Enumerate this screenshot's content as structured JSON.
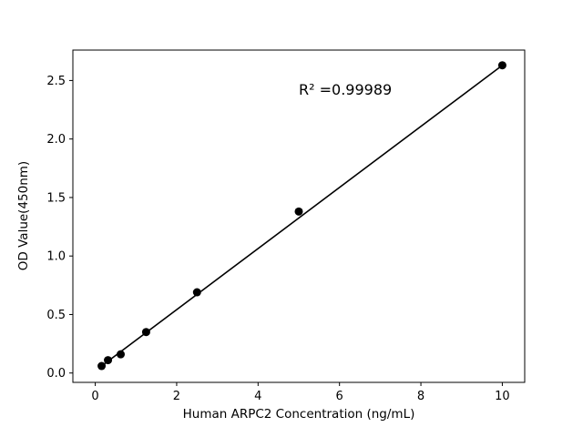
{
  "figure": {
    "background": "#ffffff"
  },
  "chart_data": {
    "type": "scatter",
    "title": "",
    "xlabel": "Human ARPC2 Concentration (ng/mL)",
    "ylabel": "OD Value(450nm)",
    "annotation": "R² =0.99989",
    "x": [
      0.156,
      0.3125,
      0.625,
      1.25,
      2.5,
      5,
      10
    ],
    "y": [
      0.06,
      0.11,
      0.16,
      0.35,
      0.69,
      1.38,
      2.63
    ],
    "fit_line": {
      "x1": 0.156,
      "y1": 0.06,
      "x2": 10,
      "y2": 2.63
    },
    "xlim": [
      -0.55,
      10.55
    ],
    "ylim": [
      -0.08,
      2.76
    ],
    "xticks": [
      0,
      2,
      4,
      6,
      8,
      10
    ],
    "xtick_labels": [
      "0",
      "2",
      "4",
      "6",
      "8",
      "10"
    ],
    "yticks": [
      0.0,
      0.5,
      1.0,
      1.5,
      2.0,
      2.5
    ],
    "ytick_labels": [
      "0.0",
      "0.5",
      "1.0",
      "1.5",
      "2.0",
      "2.5"
    ],
    "marker_color": "#000000",
    "line_color": "#000000",
    "grid": false,
    "legend": "none"
  }
}
